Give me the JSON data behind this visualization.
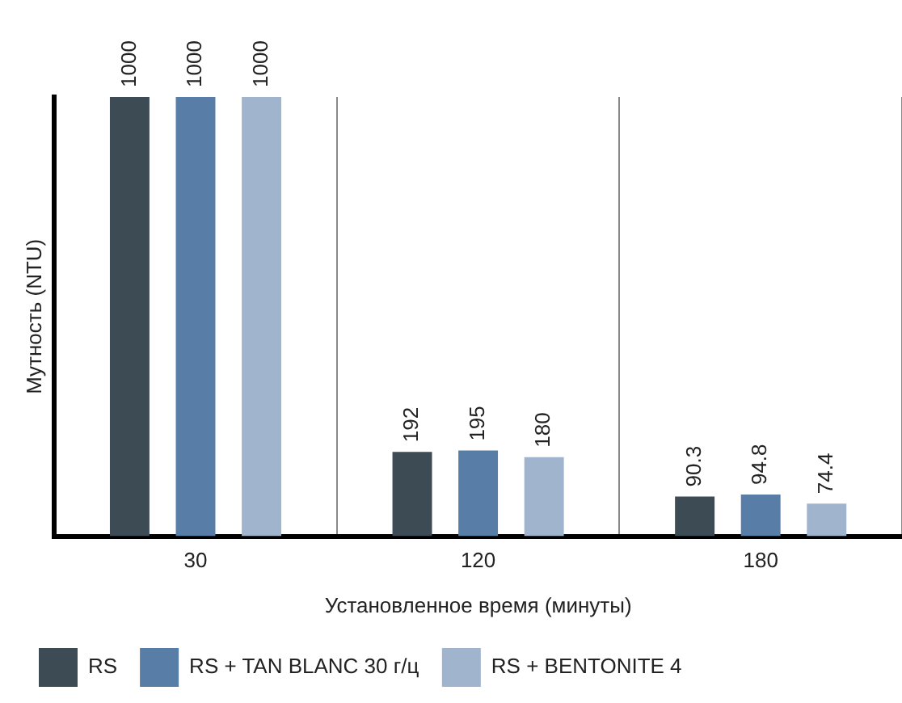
{
  "chart_data": {
    "type": "bar",
    "xlabel": "Установленное время (минуты)",
    "ylabel": "Мутность (NTU)",
    "categories": [
      "30",
      "120",
      "180"
    ],
    "series": [
      {
        "name": "RS",
        "color": "#3d4b55",
        "values": [
          1000,
          192,
          90.3
        ]
      },
      {
        "name": "RS + TAN BLANC 30 г/ц",
        "color": "#587ea8",
        "values": [
          1000,
          195,
          94.8
        ]
      },
      {
        "name": "RS + BENTONITE 4",
        "color": "#a0b4cd",
        "values": [
          1000,
          180,
          74.4
        ]
      }
    ],
    "data_labels": true,
    "grid": "x",
    "legend": "bottom",
    "tick_labels": "x"
  }
}
